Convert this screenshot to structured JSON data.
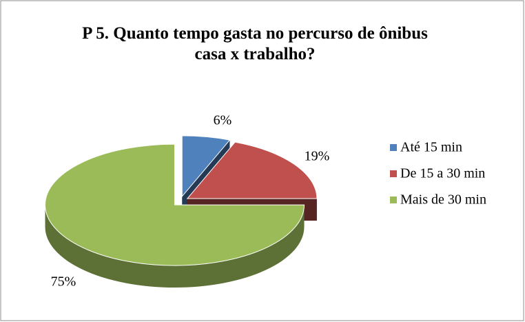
{
  "chart_data": {
    "type": "pie3d",
    "title": "P 5. Quanto tempo gasta no percurso de ônibus casa x trabalho?",
    "categories": [
      "Até 15 min",
      "De 15 a 30 min",
      "Mais de 30 min"
    ],
    "values": [
      6,
      19,
      75
    ],
    "value_labels": [
      "6%",
      "19%",
      "75%"
    ],
    "colors": [
      "#4f81bd",
      "#c0504d",
      "#9bbb59"
    ],
    "legend": "right"
  }
}
